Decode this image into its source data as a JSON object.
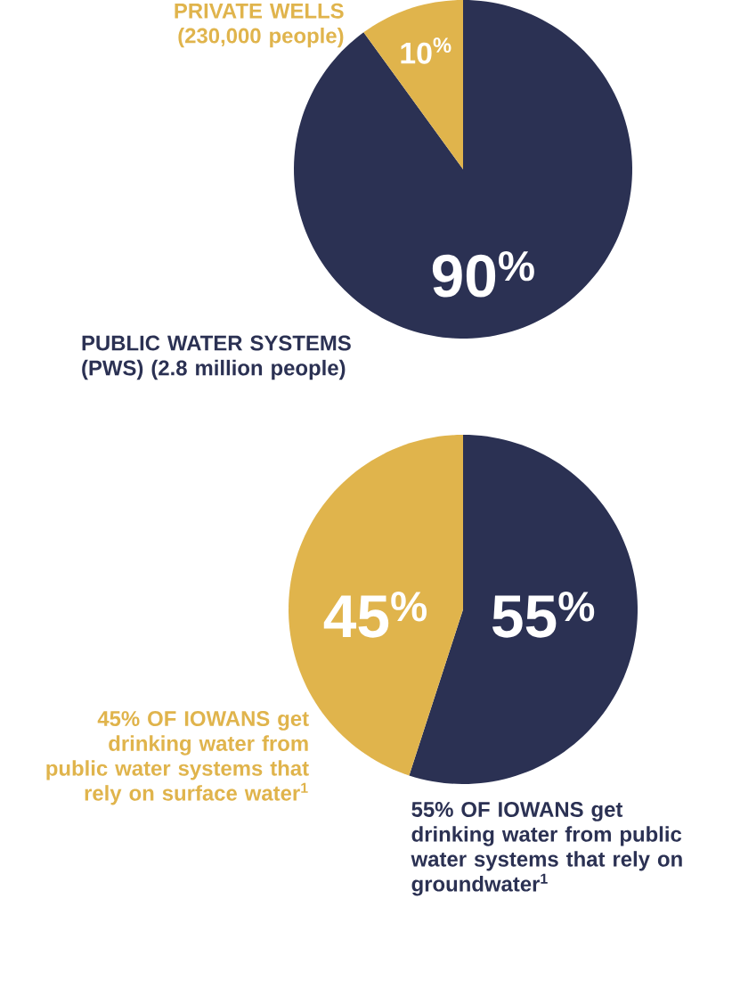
{
  "chart_data": [
    {
      "type": "pie",
      "categories": [
        "**PUBLIC WATER SYSTEMS (PWS)** (2.8 million people)",
        "**PRIVATE WELLS** (230,000 people)"
      ],
      "values": [
        90,
        10
      ],
      "colors": [
        "#2b3153",
        "#e0b44c"
      ],
      "value_labels": [
        "90$^{%}$",
        "10$^{%}$"
      ]
    },
    {
      "type": "pie",
      "categories": [
        "**55% OF IOWANS** get drinking water from public water systems that rely on groundwater$^{1}$",
        "**45% OF IOWANS** get drinking water from public water systems that rely on surface water$^{1}$"
      ],
      "values": [
        55,
        45
      ],
      "colors": [
        "#2b3153",
        "#e0b44c"
      ],
      "value_labels": [
        "55$^{%}$",
        "45$^{%}$"
      ]
    }
  ]
}
